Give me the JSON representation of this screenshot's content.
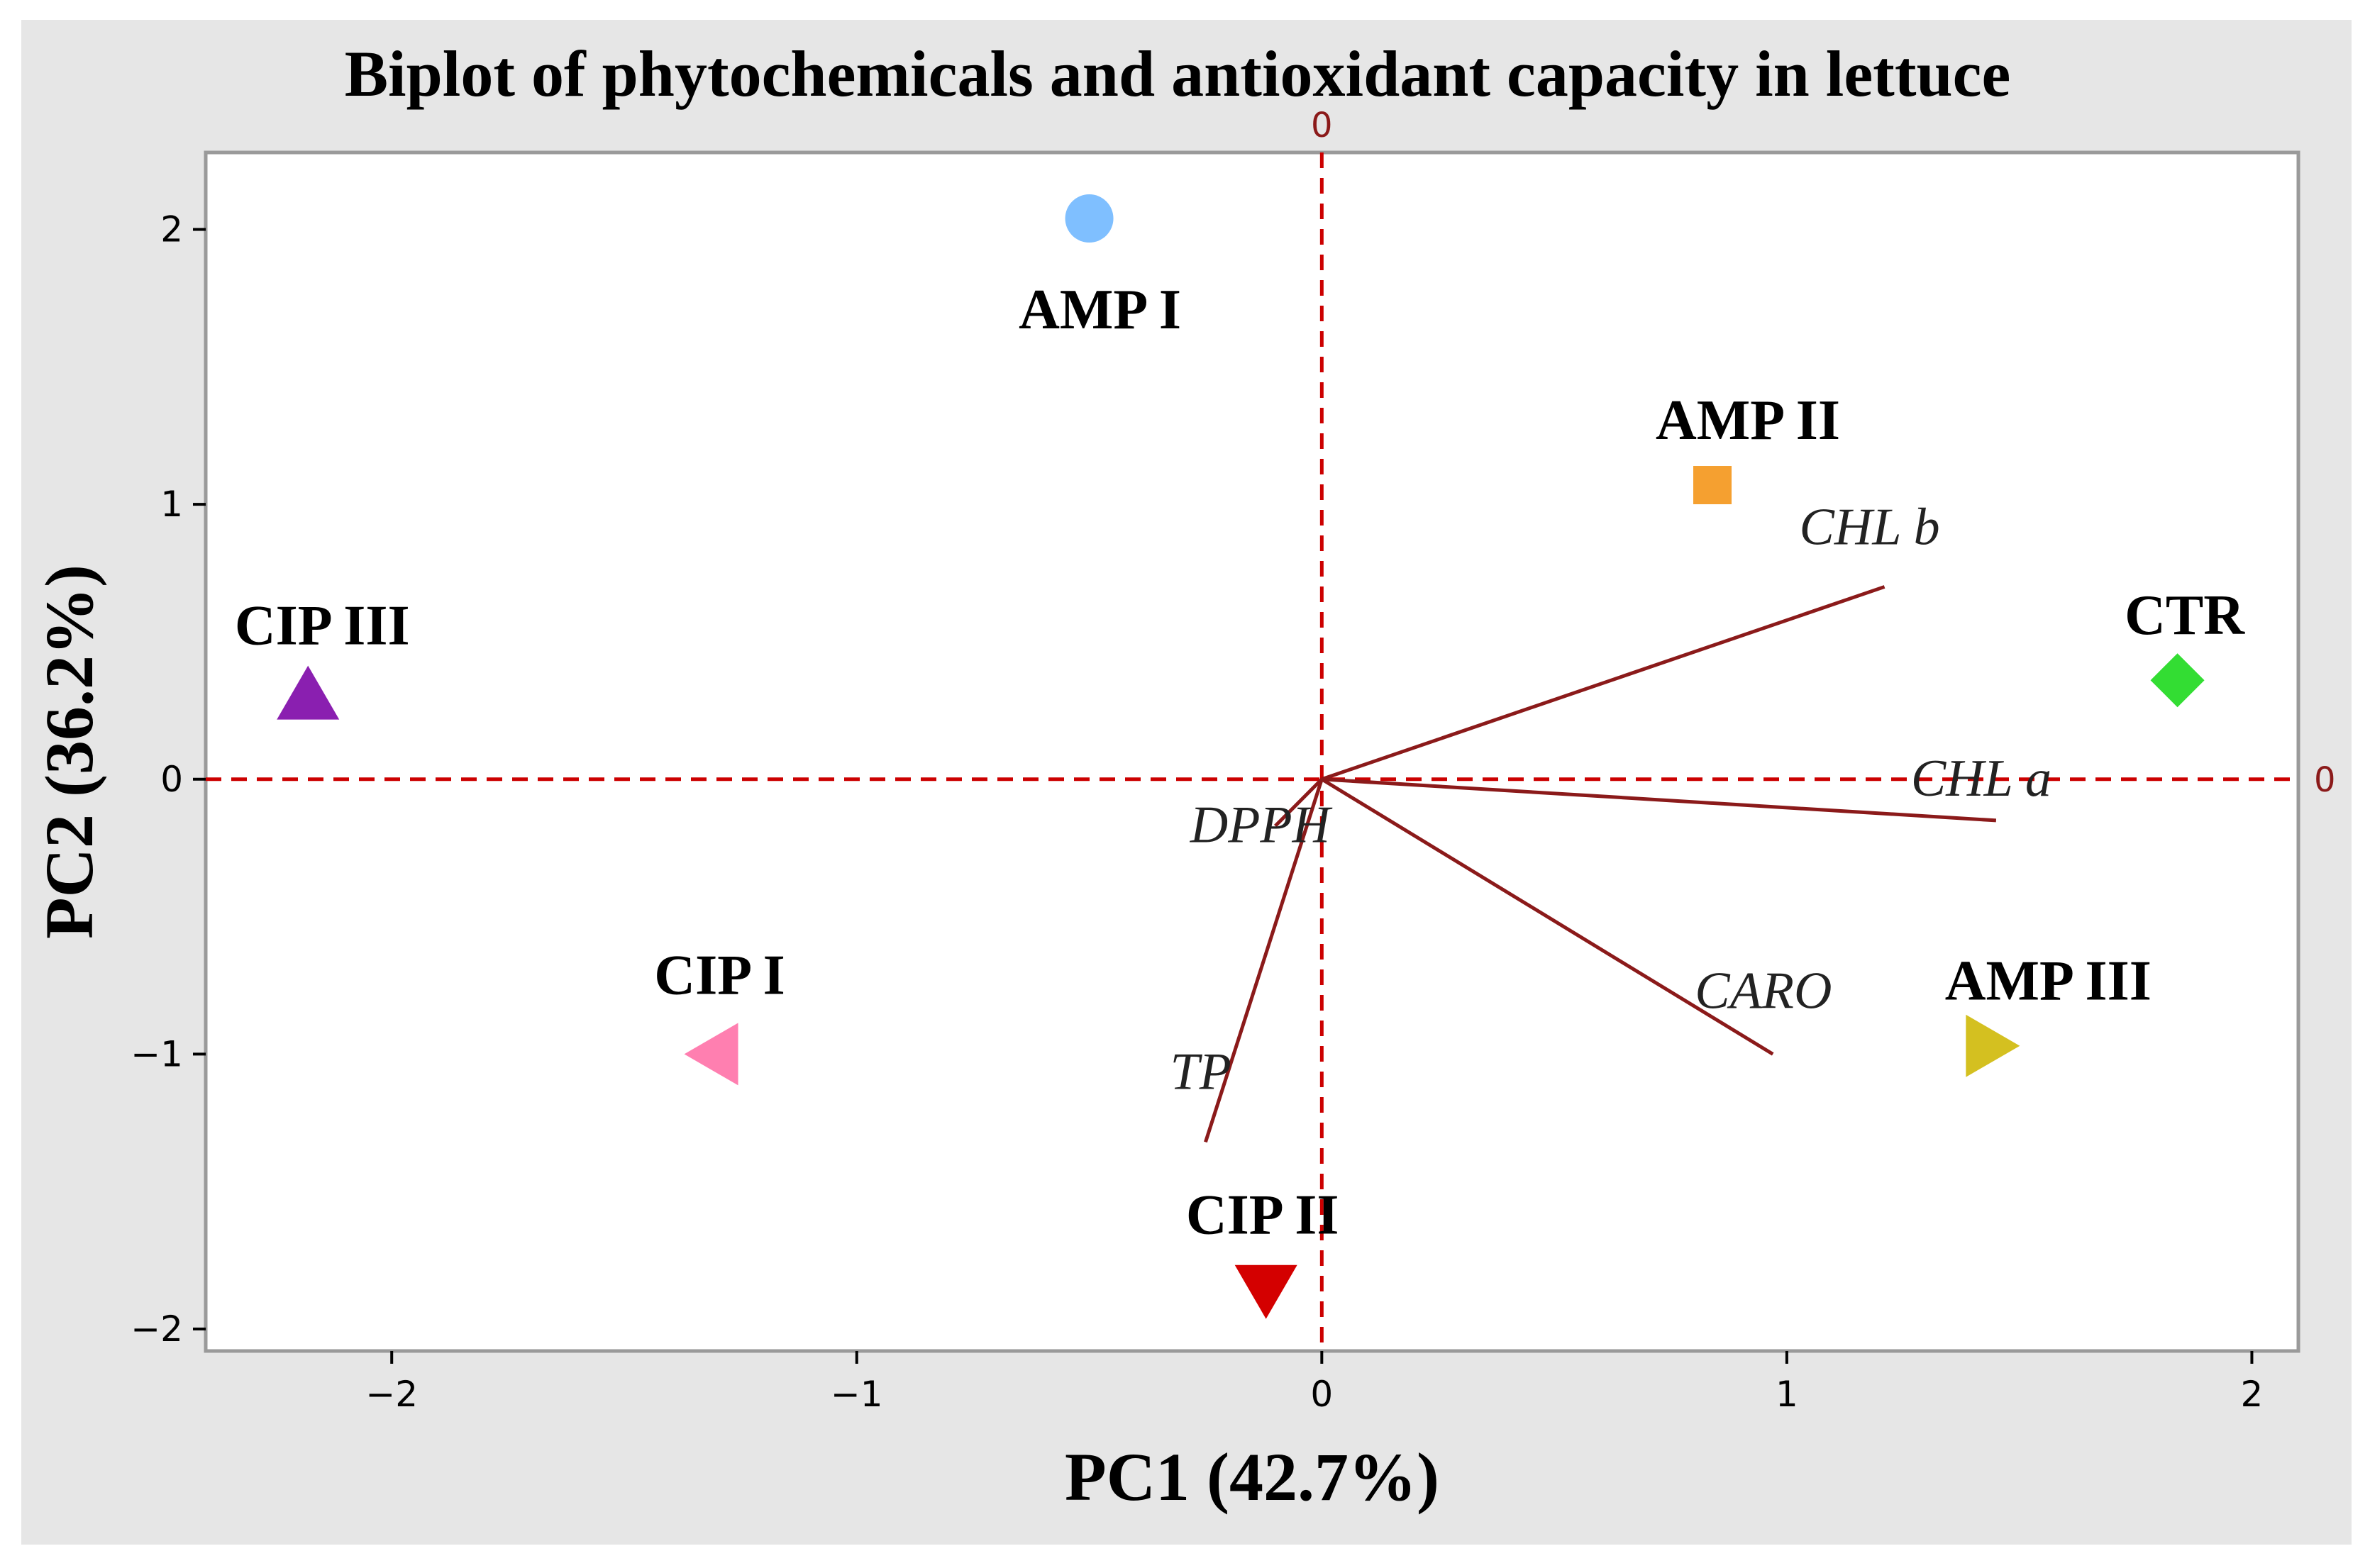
{
  "chart_data": {
    "type": "scatter",
    "title": "Biplot of phytochemicals and antioxidant capacity in lettuce",
    "xlabel": "PC1 (42.7%)",
    "ylabel": "PC2 (36.2%)",
    "xlim": [
      -2.4,
      2.1
    ],
    "ylim": [
      -2.08,
      2.28
    ],
    "xticks": [
      -2,
      -1,
      0,
      1,
      2
    ],
    "yticks": [
      -2,
      -1,
      0,
      1,
      2
    ],
    "xtick_labels": [
      "−2",
      "−1",
      "0",
      "1",
      "2"
    ],
    "ytick_labels": [
      "−2",
      "−1",
      "0",
      "1",
      "2"
    ],
    "reference_lines": {
      "x": 0,
      "y": 0,
      "x_label": "0",
      "y_label": "0",
      "color": "#cc0000"
    },
    "loading_color": "#8b1a1a",
    "scores": [
      {
        "name": "AMP I",
        "x": -0.5,
        "y": 2.04,
        "marker": "circle",
        "color": "#7fbfff"
      },
      {
        "name": "AMP II",
        "x": 0.84,
        "y": 1.07,
        "marker": "square",
        "color": "#f5a030"
      },
      {
        "name": "CTR",
        "x": 1.84,
        "y": 0.36,
        "marker": "diamond",
        "color": "#33dd33"
      },
      {
        "name": "CIP III",
        "x": -2.18,
        "y": 0.31,
        "marker": "triangle-up",
        "color": "#8a1fb0"
      },
      {
        "name": "CIP I",
        "x": -1.31,
        "y": -1.0,
        "marker": "triangle-left",
        "color": "#ff7fb0"
      },
      {
        "name": "AMP III",
        "x": 1.44,
        "y": -0.97,
        "marker": "triangle-right",
        "color": "#d4c020"
      },
      {
        "name": "CIP II",
        "x": -0.12,
        "y": -1.86,
        "marker": "triangle-down",
        "color": "#d40000"
      }
    ],
    "loadings": [
      {
        "name": "CHL b",
        "x": 1.21,
        "y": 0.7
      },
      {
        "name": "CHL a",
        "x": 1.45,
        "y": -0.15
      },
      {
        "name": "CARO",
        "x": 0.97,
        "y": -1.0
      },
      {
        "name": "TP",
        "x": -0.25,
        "y": -1.32
      },
      {
        "name": "DPPH",
        "x": -0.1,
        "y": -0.17
      }
    ]
  }
}
